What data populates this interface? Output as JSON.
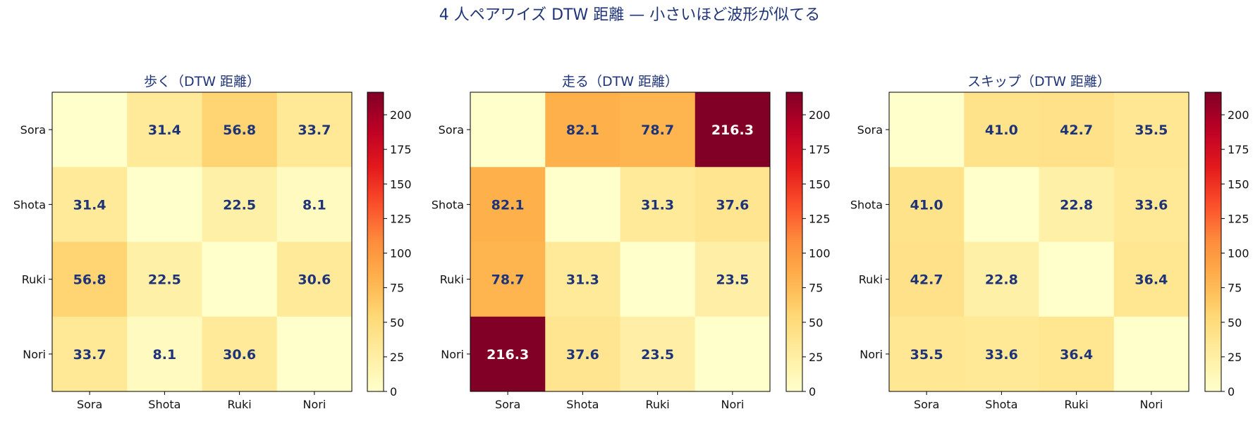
{
  "suptitle": "4 人ペアワイズ DTW 距離 — 小さいほど波形が似てる",
  "colors": {
    "title": "#1f3478",
    "annotation": "#1f3478",
    "annotation_on_dark": "#ffffff",
    "cmap": "YlOrRd"
  },
  "chart_data": [
    {
      "type": "heatmap",
      "title": "歩く（DTW 距離）",
      "rows": [
        "Sora",
        "Shota",
        "Ruki",
        "Nori"
      ],
      "cols": [
        "Sora",
        "Shota",
        "Ruki",
        "Nori"
      ],
      "values": [
        [
          0,
          31.4,
          56.8,
          33.7
        ],
        [
          31.4,
          0,
          22.5,
          8.1
        ],
        [
          56.8,
          22.5,
          0,
          30.6
        ],
        [
          33.7,
          8.1,
          30.6,
          0
        ]
      ],
      "labels": [
        [
          "",
          "31.4",
          "56.8",
          "33.7"
        ],
        [
          "31.4",
          "",
          "22.5",
          "8.1"
        ],
        [
          "56.8",
          "22.5",
          "",
          "30.6"
        ],
        [
          "33.7",
          "8.1",
          "30.6",
          ""
        ]
      ],
      "colorbar": {
        "vmin": 0,
        "vmax": 216.3,
        "ticks": [
          "0",
          "25",
          "50",
          "75",
          "100",
          "125",
          "150",
          "175",
          "200"
        ]
      }
    },
    {
      "type": "heatmap",
      "title": "走る（DTW 距離）",
      "rows": [
        "Sora",
        "Shota",
        "Ruki",
        "Nori"
      ],
      "cols": [
        "Sora",
        "Shota",
        "Ruki",
        "Nori"
      ],
      "values": [
        [
          0,
          82.1,
          78.7,
          216.3
        ],
        [
          82.1,
          0,
          31.3,
          37.6
        ],
        [
          78.7,
          31.3,
          0,
          23.5
        ],
        [
          216.3,
          37.6,
          23.5,
          0
        ]
      ],
      "labels": [
        [
          "",
          "82.1",
          "78.7",
          "216.3"
        ],
        [
          "82.1",
          "",
          "31.3",
          "37.6"
        ],
        [
          "78.7",
          "31.3",
          "",
          "23.5"
        ],
        [
          "216.3",
          "37.6",
          "23.5",
          ""
        ]
      ],
      "colorbar": {
        "vmin": 0,
        "vmax": 216.3,
        "ticks": [
          "0",
          "25",
          "50",
          "75",
          "100",
          "125",
          "150",
          "175",
          "200"
        ]
      }
    },
    {
      "type": "heatmap",
      "title": "スキップ（DTW 距離）",
      "rows": [
        "Sora",
        "Shota",
        "Ruki",
        "Nori"
      ],
      "cols": [
        "Sora",
        "Shota",
        "Ruki",
        "Nori"
      ],
      "values": [
        [
          0,
          41.0,
          42.7,
          35.5
        ],
        [
          41.0,
          0,
          22.8,
          33.6
        ],
        [
          42.7,
          22.8,
          0,
          36.4
        ],
        [
          35.5,
          33.6,
          36.4,
          0
        ]
      ],
      "labels": [
        [
          "",
          "41.0",
          "42.7",
          "35.5"
        ],
        [
          "41.0",
          "",
          "22.8",
          "33.6"
        ],
        [
          "42.7",
          "22.8",
          "",
          "36.4"
        ],
        [
          "35.5",
          "33.6",
          "36.4",
          ""
        ]
      ],
      "colorbar": {
        "vmin": 0,
        "vmax": 216.3,
        "ticks": [
          "0",
          "25",
          "50",
          "75",
          "100",
          "125",
          "150",
          "175",
          "200"
        ]
      }
    }
  ]
}
